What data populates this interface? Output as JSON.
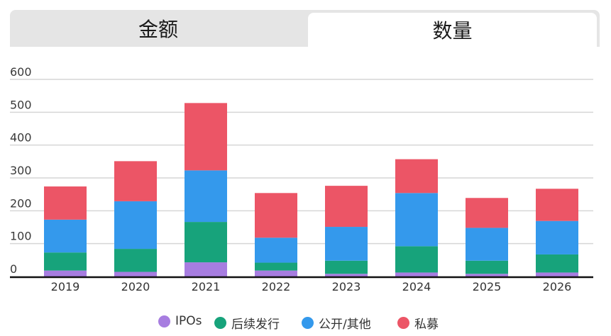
{
  "tabs": {
    "amount_label": "金额",
    "count_label": "数量",
    "active": "count"
  },
  "colors": {
    "ipo": "#a77de0",
    "followon": "#17a37b",
    "public_other": "#3499ec",
    "private": "#ec5566"
  },
  "chart_data": {
    "type": "bar",
    "stacked": true,
    "categories": [
      "2019",
      "2020",
      "2021",
      "2022",
      "2023",
      "2024",
      "2025",
      "2026"
    ],
    "series": [
      {
        "name": "IPOs",
        "values": [
          18,
          14,
          43,
          18,
          8,
          12,
          8,
          12
        ]
      },
      {
        "name": "后续发行",
        "values": [
          55,
          70,
          123,
          24,
          40,
          80,
          40,
          55
        ]
      },
      {
        "name": "公开/其他",
        "values": [
          100,
          145,
          157,
          76,
          103,
          162,
          100,
          102
        ]
      },
      {
        "name": "私募",
        "values": [
          101,
          122,
          205,
          136,
          125,
          103,
          91,
          98
        ]
      }
    ],
    "ylim": [
      0,
      600
    ],
    "yticks": [
      "0",
      "100",
      "200",
      "300",
      "400",
      "500",
      "600"
    ],
    "title": "",
    "xlabel": "",
    "ylabel": "",
    "legend_position": "bottom-center"
  }
}
